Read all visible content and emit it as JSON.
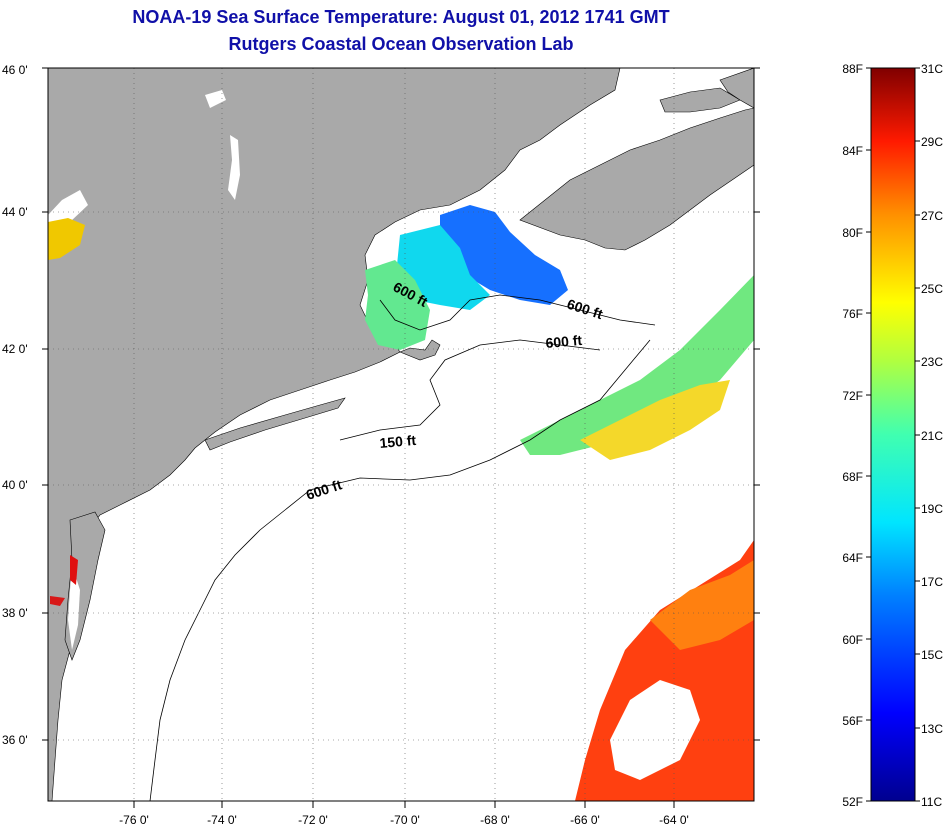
{
  "title_line1": "NOAA-19 Sea Surface Temperature:  August 01, 2012 1741 GMT",
  "title_line2": "Rutgers Coastal Ocean Observation Lab",
  "lat_labels": [
    "46 0'",
    "44 0'",
    "42 0'",
    "40 0'",
    "38 0'",
    "36 0'"
  ],
  "lon_labels": [
    "-76 0'",
    "-74 0'",
    "-72 0'",
    "-70 0'",
    "-68 0'",
    "-66 0'",
    "-64 0'"
  ],
  "contour_labels": [
    "600 ft",
    "600 ft",
    "600 ft",
    "150 ft",
    "600 ft"
  ],
  "colorbar": {
    "fahrenheit": [
      "88F",
      "84F",
      "80F",
      "76F",
      "72F",
      "68F",
      "64F",
      "60F",
      "56F",
      "52F"
    ],
    "celsius": [
      "31C",
      "29C",
      "27C",
      "25C",
      "23C",
      "21C",
      "19C",
      "17C",
      "15C",
      "13C",
      "11C"
    ]
  },
  "colors": {
    "land": "#a9a9a9",
    "water": "#ffffff",
    "title": "#1010a8"
  }
}
